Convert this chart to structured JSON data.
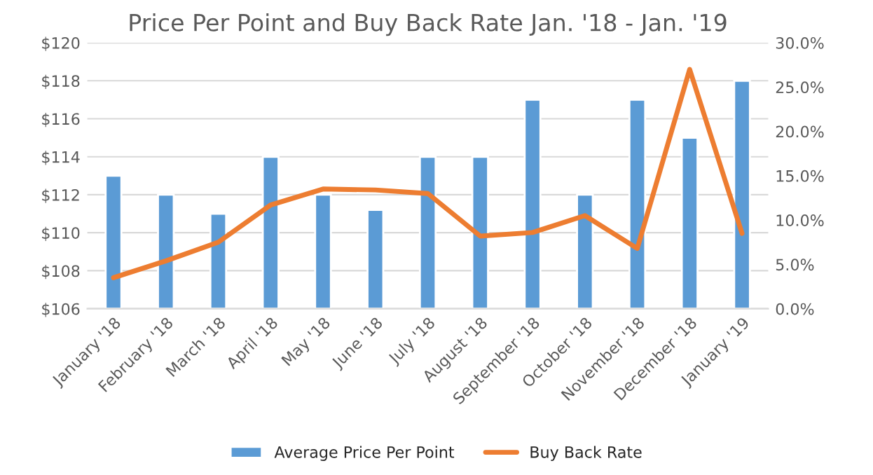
{
  "chart_data": {
    "type": "bar",
    "title": "Price Per Point and Buy Back Rate Jan. '18 - Jan. '19",
    "categories": [
      "January '18",
      "February '18",
      "March '18",
      "April '18",
      "May '18",
      "June '18",
      "July '18",
      "August '18",
      "September '18",
      "October '18",
      "November '18",
      "December '18",
      "January '19"
    ],
    "series": [
      {
        "name": "Average Price Per Point",
        "color": "#5b9bd5",
        "values": [
          113,
          112,
          111,
          114,
          112,
          111.2,
          114,
          114,
          117,
          112,
          117,
          115,
          118
        ]
      },
      {
        "name": "Buy Back Rate",
        "color": "#ed7d31",
        "type": "line",
        "axis": "y2",
        "values": [
          3.5,
          5.4,
          7.5,
          11.7,
          13.5,
          13.4,
          13.0,
          8.2,
          8.6,
          10.5,
          6.8,
          27.0,
          8.5
        ]
      }
    ],
    "ylim": [
      106,
      120
    ],
    "yticks": [
      {
        "value": 106,
        "label": "$106"
      },
      {
        "value": 108,
        "label": "$108"
      },
      {
        "value": 110,
        "label": "$110"
      },
      {
        "value": 112,
        "label": "$112"
      },
      {
        "value": 114,
        "label": "$114"
      },
      {
        "value": 116,
        "label": "$116"
      },
      {
        "value": 118,
        "label": "$118"
      },
      {
        "value": 120,
        "label": "$120"
      }
    ],
    "y2lim": [
      0,
      30
    ],
    "y2ticks": [
      {
        "value": 0,
        "label": "0.0%"
      },
      {
        "value": 5,
        "label": "5.0%"
      },
      {
        "value": 10,
        "label": "10.0%"
      },
      {
        "value": 15,
        "label": "15.0%"
      },
      {
        "value": 20,
        "label": "20.0%"
      },
      {
        "value": 25,
        "label": "25.0%"
      },
      {
        "value": 30,
        "label": "30.0%"
      }
    ],
    "grid": "y",
    "legend": "bottom"
  }
}
